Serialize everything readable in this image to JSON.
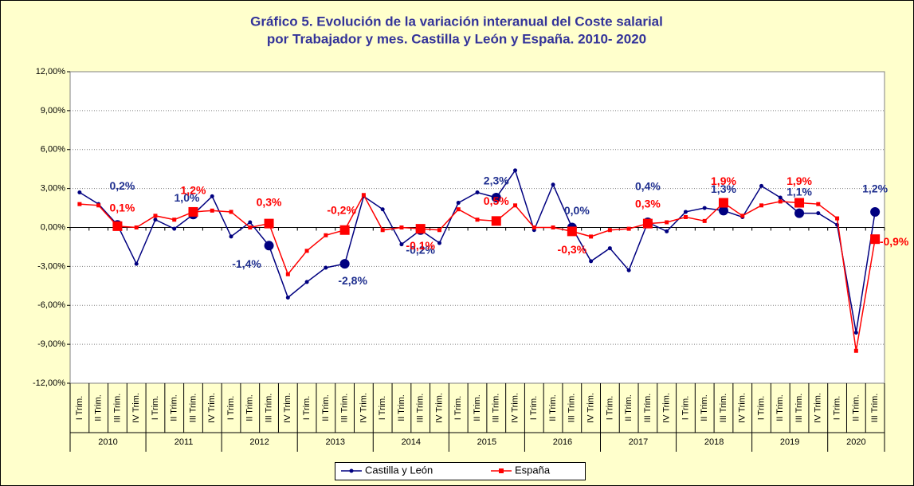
{
  "chart_data": {
    "type": "line",
    "title": [
      "Gráfico 5. Evolución de la variación interanual  del Coste salarial",
      "por Trabajador y mes. Castilla y León y España. 2010- 2020"
    ],
    "categories": [
      "I Trim.",
      "II Trim.",
      "III Trim.",
      "IV Trim.",
      "I Trim.",
      "II Trim.",
      "III Trim.",
      "IV Trim.",
      "I Trim.",
      "II Trim.",
      "III Trim.",
      "IV Trim.",
      "I Trim.",
      "II Trim.",
      "III Trim.",
      "IV Trim.",
      "I Trim.",
      "II Trim.",
      "III Trim.",
      "IV Trim.",
      "I Trim.",
      "II Trim.",
      "III Trim.",
      "IV Trim.",
      "I Trim.",
      "II Trim.",
      "III Trim.",
      "IV Trim.",
      "I Trim.",
      "II Trim.",
      "III Trim.",
      "IV Trim.",
      "I Trim.",
      "II Trim.",
      "III Trim.",
      "IV Trim.",
      "I Trim.",
      "II Trim.",
      "III Trim.",
      "IV Trim.",
      "I Trim.",
      "II Trim.",
      "III Trim."
    ],
    "groups": [
      "2010",
      "2011",
      "2012",
      "2013",
      "2014",
      "2015",
      "2016",
      "2017",
      "2018",
      "2019",
      "2020"
    ],
    "series": [
      {
        "name": "Castilla y León",
        "color": "#000080",
        "label_color": "#1f2f8f",
        "values": [
          2.7,
          1.8,
          0.2,
          -2.8,
          0.6,
          -0.1,
          1.0,
          2.4,
          -0.7,
          0.4,
          -1.4,
          -5.4,
          -4.2,
          -3.1,
          -2.8,
          2.4,
          1.4,
          -1.3,
          -0.2,
          -1.2,
          1.9,
          2.7,
          2.3,
          4.4,
          -0.2,
          3.3,
          0.0,
          -2.6,
          -1.6,
          -3.3,
          0.4,
          -0.3,
          1.2,
          1.5,
          1.3,
          0.8,
          3.2,
          2.3,
          1.1,
          1.1,
          0.2,
          -8.1,
          1.2
        ],
        "value_labels": [
          null,
          null,
          "0,2%",
          null,
          null,
          null,
          "1,0%",
          null,
          null,
          null,
          "-1,4%",
          null,
          null,
          null,
          "-2,8%",
          null,
          null,
          null,
          "-0,2%",
          null,
          null,
          null,
          "2,3%",
          null,
          null,
          null,
          "0,0%",
          null,
          null,
          null,
          "0,4%",
          null,
          null,
          null,
          "1,3%",
          null,
          null,
          null,
          "1,1%",
          null,
          null,
          null,
          "1,2%"
        ]
      },
      {
        "name": "España",
        "color": "#ff0000",
        "label_color": "#ff0000",
        "values": [
          1.8,
          1.7,
          0.1,
          0.0,
          0.9,
          0.6,
          1.2,
          1.3,
          1.2,
          0.0,
          0.3,
          -3.6,
          -1.8,
          -0.6,
          -0.2,
          2.5,
          -0.2,
          0.0,
          -0.1,
          -0.2,
          1.4,
          0.6,
          0.5,
          1.7,
          0.0,
          0.0,
          -0.3,
          -0.7,
          -0.2,
          -0.1,
          0.3,
          0.4,
          0.8,
          0.5,
          1.9,
          0.9,
          1.7,
          2.0,
          1.9,
          1.8,
          0.7,
          -9.5,
          -0.9
        ],
        "value_labels": [
          null,
          null,
          "0,1%",
          null,
          null,
          null,
          "1,2%",
          null,
          null,
          null,
          "0,3%",
          null,
          null,
          null,
          "-0,2%",
          null,
          null,
          null,
          "-0,1%",
          null,
          null,
          null,
          "0,5%",
          null,
          null,
          null,
          "-0,3%",
          null,
          null,
          null,
          "0,3%",
          null,
          null,
          null,
          "1,9%",
          null,
          null,
          null,
          "1,9%",
          null,
          null,
          null,
          "-0,9%"
        ]
      }
    ],
    "ylim": [
      -12,
      12
    ],
    "yticks": [
      {
        "value": -12,
        "label": "-12,00%"
      },
      {
        "value": -9,
        "label": "-9,00%"
      },
      {
        "value": -6,
        "label": "-6,00%"
      },
      {
        "value": -3,
        "label": "-3,00%"
      },
      {
        "value": 0,
        "label": "0,00%"
      },
      {
        "value": 3,
        "label": "3,00%"
      },
      {
        "value": 6,
        "label": "6,00%"
      },
      {
        "value": 9,
        "label": "9,00%"
      },
      {
        "value": 12,
        "label": "12,00%"
      }
    ],
    "grid": true,
    "legend": "bottom"
  }
}
